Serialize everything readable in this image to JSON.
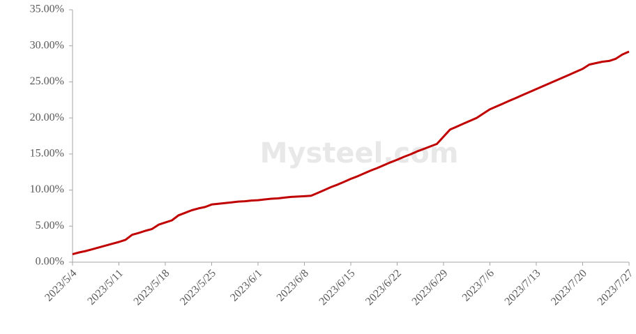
{
  "chart_data": {
    "type": "line",
    "watermark": "Mysteel.com",
    "categories": [
      "2023/5/4",
      null,
      null,
      null,
      null,
      null,
      null,
      "2023/5/11",
      null,
      null,
      null,
      null,
      null,
      null,
      "2023/5/18",
      null,
      null,
      null,
      null,
      null,
      null,
      "2023/5/25",
      null,
      null,
      null,
      null,
      null,
      null,
      "2023/6/1",
      null,
      null,
      null,
      null,
      null,
      null,
      "2023/6/8",
      null,
      null,
      null,
      null,
      null,
      null,
      "2023/6/15",
      null,
      null,
      null,
      null,
      null,
      null,
      "2023/6/22",
      null,
      null,
      null,
      null,
      null,
      null,
      "2023/6/29",
      null,
      null,
      null,
      null,
      null,
      null,
      "2023/7/6",
      null,
      null,
      null,
      null,
      null,
      null,
      "2023/7/13",
      null,
      null,
      null,
      null,
      null,
      null,
      "2023/7/20",
      null,
      null,
      null,
      null,
      null,
      null,
      "2023/7/27"
    ],
    "series": [
      {
        "color": "#c00000",
        "values": [
          1.1,
          1.35,
          1.55,
          1.8,
          2.05,
          2.3,
          2.55,
          2.8,
          3.1,
          3.8,
          4.05,
          4.35,
          4.6,
          5.2,
          5.5,
          5.8,
          6.5,
          6.85,
          7.2,
          7.45,
          7.65,
          8.0,
          8.1,
          8.2,
          8.3,
          8.4,
          8.45,
          8.55,
          8.6,
          8.7,
          8.8,
          8.85,
          8.95,
          9.05,
          9.1,
          9.15,
          9.2,
          9.6,
          10.0,
          10.4,
          10.75,
          11.15,
          11.55,
          11.9,
          12.3,
          12.7,
          13.05,
          13.45,
          13.85,
          14.2,
          14.6,
          14.95,
          15.35,
          15.7,
          16.05,
          16.4,
          17.4,
          18.4,
          18.8,
          19.2,
          19.6,
          20.0,
          20.6,
          21.2,
          21.6,
          22.0,
          22.4,
          22.8,
          23.2,
          23.6,
          24.0,
          24.4,
          24.8,
          25.2,
          25.6,
          26.0,
          26.4,
          26.8,
          27.4,
          27.6,
          27.8,
          27.9,
          28.2,
          28.8,
          29.2
        ]
      }
    ],
    "ylim": [
      0,
      35
    ],
    "yticks": [
      {
        "value": 0,
        "label": "0.00%"
      },
      {
        "value": 5,
        "label": "5.00%"
      },
      {
        "value": 10,
        "label": "10.00%"
      },
      {
        "value": 15,
        "label": "15.00%"
      },
      {
        "value": 20,
        "label": "20.00%"
      },
      {
        "value": 25,
        "label": "25.00%"
      },
      {
        "value": 30,
        "label": "30.00%"
      },
      {
        "value": 35,
        "label": "35.00%"
      }
    ],
    "grid": false
  }
}
